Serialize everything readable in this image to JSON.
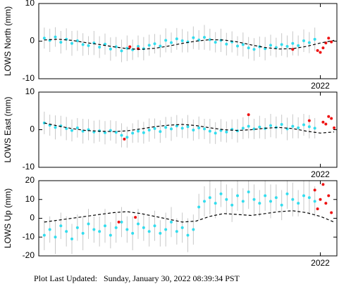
{
  "chart_data": [
    {
      "type": "scatter",
      "ylabel": "LOWS North (mm)",
      "xlim": [
        2016.9,
        2022.3
      ],
      "ylim": [
        -10,
        10
      ],
      "yticks": [
        -10,
        0,
        10
      ],
      "xticks": [
        2022
      ],
      "series": [
        {
          "color": "#33ddee",
          "mode": "points",
          "x": [
            2017.0,
            2017.1,
            2017.2,
            2017.3,
            2017.4,
            2017.5,
            2017.6,
            2017.7,
            2017.8,
            2017.9,
            2018.0,
            2018.1,
            2018.2,
            2018.3,
            2018.4,
            2018.5,
            2018.6,
            2018.7,
            2018.8,
            2018.9,
            2019.0,
            2019.1,
            2019.2,
            2019.3,
            2019.4,
            2019.5,
            2019.6,
            2019.7,
            2019.8,
            2019.9,
            2020.0,
            2020.1,
            2020.2,
            2020.3,
            2020.4,
            2020.5,
            2020.6,
            2020.7,
            2020.8,
            2020.9,
            2021.0,
            2021.1,
            2021.2,
            2021.3,
            2021.4,
            2021.5,
            2021.6,
            2021.7,
            2021.8,
            2021.9
          ],
          "values": [
            0.8,
            0.2,
            1.1,
            -0.3,
            0.5,
            -0.6,
            0.1,
            -0.9,
            -1.2,
            -0.5,
            -1.6,
            -0.8,
            -2.1,
            -1.5,
            -2.6,
            -1.9,
            -2.3,
            -1.4,
            -2.0,
            -1.1,
            -0.7,
            -1.3,
            0.2,
            -0.4,
            0.6,
            0.1,
            -0.2,
            0.9,
            0.3,
            1.0,
            0.4,
            -0.3,
            0.2,
            -0.8,
            -0.2,
            -1.3,
            -0.9,
            -1.8,
            -2.2,
            -1.5,
            -2.0,
            -1.1,
            -1.7,
            -0.9,
            -1.4,
            -0.6,
            -1.2,
            0.1,
            -0.4,
            0.5
          ],
          "errors": [
            2.8,
            3.1,
            2.6,
            3.0,
            2.9,
            3.3,
            2.7,
            3.0,
            2.5,
            3.2,
            2.9,
            2.8,
            3.1,
            2.6,
            3.0,
            3.4,
            2.7,
            2.9,
            3.1,
            2.8,
            2.6,
            3.0,
            3.2,
            2.7,
            2.9,
            3.1,
            2.8,
            3.0,
            2.6,
            3.3,
            2.9,
            2.7,
            3.1,
            3.0,
            2.8,
            2.6,
            3.2,
            2.9,
            3.0,
            2.7,
            3.1,
            2.8,
            2.6,
            3.0,
            2.9,
            3.2,
            2.7,
            3.0,
            2.8,
            3.1
          ]
        },
        {
          "color": "#ee1111",
          "mode": "points",
          "x": [
            2018.55,
            2018.7,
            2021.5,
            2021.95,
            2022.0,
            2022.05,
            2022.1,
            2022.15,
            2022.2
          ],
          "values": [
            -1.5,
            -2.0,
            -2.2,
            -2.5,
            -3.0,
            -1.8,
            -0.5,
            0.8,
            -0.2
          ]
        },
        {
          "color": "#000000",
          "mode": "dashed-line",
          "x": [
            2017.0,
            2017.25,
            2017.5,
            2017.75,
            2018.0,
            2018.25,
            2018.5,
            2018.75,
            2019.0,
            2019.25,
            2019.5,
            2019.75,
            2020.0,
            2020.25,
            2020.5,
            2020.75,
            2021.0,
            2021.25,
            2021.5,
            2021.75,
            2022.0,
            2022.25
          ],
          "values": [
            0.3,
            0.5,
            0.2,
            -0.4,
            -0.9,
            -1.5,
            -2.0,
            -2.2,
            -1.9,
            -1.3,
            -0.6,
            0,
            0.4,
            0.3,
            -0.2,
            -1.0,
            -1.7,
            -2.1,
            -2.0,
            -1.4,
            -0.5,
            0.2
          ]
        }
      ]
    },
    {
      "type": "scatter",
      "ylabel": "LOWS East (mm)",
      "xlim": [
        2016.9,
        2022.3
      ],
      "ylim": [
        -10,
        10
      ],
      "yticks": [
        -10,
        0,
        10
      ],
      "xticks": [
        2022
      ],
      "series": [
        {
          "color": "#33ddee",
          "mode": "points",
          "x": [
            2017.0,
            2017.1,
            2017.2,
            2017.3,
            2017.4,
            2017.5,
            2017.6,
            2017.7,
            2017.8,
            2017.9,
            2018.0,
            2018.1,
            2018.2,
            2018.3,
            2018.4,
            2018.5,
            2018.6,
            2018.7,
            2018.8,
            2018.9,
            2019.0,
            2019.1,
            2019.2,
            2019.3,
            2019.4,
            2019.5,
            2019.6,
            2019.7,
            2019.8,
            2019.9,
            2020.0,
            2020.1,
            2020.2,
            2020.3,
            2020.4,
            2020.5,
            2020.6,
            2020.7,
            2020.8,
            2020.9,
            2021.0,
            2021.1,
            2021.2,
            2021.3,
            2021.4,
            2021.5,
            2021.6,
            2021.7,
            2021.8,
            2021.9
          ],
          "values": [
            1.8,
            1.2,
            0.6,
            1.0,
            0.3,
            -0.2,
            0.5,
            -0.4,
            0.0,
            -0.6,
            -0.3,
            -0.8,
            -0.2,
            -0.7,
            -1.5,
            -2.0,
            -0.9,
            -0.4,
            -0.8,
            -0.1,
            0.3,
            -0.5,
            0.6,
            0.2,
            1.0,
            0.4,
            0.8,
            -0.1,
            0.5,
            0.2,
            -0.4,
            -0.9,
            -0.2,
            -0.6,
            0.1,
            -0.3,
            0.4,
            0.9,
            0.2,
            0.7,
            0.3,
            1.1,
            0.6,
            1.4,
            0.2,
            0.9,
            0.5,
            1.3,
            0.8,
            0.4
          ],
          "errors": [
            3.0,
            2.8,
            3.2,
            2.7,
            3.1,
            2.9,
            2.6,
            3.3,
            2.8,
            3.0,
            2.9,
            3.1,
            2.7,
            3.0,
            3.2,
            2.8,
            2.6,
            3.0,
            2.9,
            3.1,
            2.7,
            3.0,
            2.8,
            3.2,
            2.9,
            2.6,
            3.1,
            2.8,
            3.0,
            2.7,
            3.3,
            2.9,
            3.0,
            2.8,
            2.6,
            3.1,
            2.9,
            3.2,
            2.7,
            3.0,
            2.8,
            3.1,
            2.9,
            2.6,
            3.0,
            3.2,
            2.8,
            2.9,
            3.1,
            2.7
          ]
        },
        {
          "color": "#ee1111",
          "mode": "points",
          "x": [
            2018.45,
            2020.7,
            2021.8,
            2022.05,
            2022.1,
            2022.15,
            2022.2,
            2022.25
          ],
          "values": [
            -2.5,
            4.0,
            2.4,
            2.0,
            1.5,
            3.5,
            3.0,
            0.5
          ]
        },
        {
          "color": "#000000",
          "mode": "dashed-line",
          "x": [
            2017.0,
            2017.25,
            2017.5,
            2017.75,
            2018.0,
            2018.25,
            2018.5,
            2018.75,
            2019.0,
            2019.25,
            2019.5,
            2019.75,
            2020.0,
            2020.25,
            2020.5,
            2020.75,
            2021.0,
            2021.25,
            2021.5,
            2021.75,
            2022.0,
            2022.25
          ],
          "values": [
            1.8,
            1.0,
            0.3,
            -0.2,
            -0.4,
            -0.5,
            -0.3,
            0.2,
            0.8,
            1.2,
            1.4,
            1.1,
            0.5,
            0,
            -0.2,
            0,
            0.4,
            0.6,
            0.3,
            -0.4,
            -0.9,
            -0.6
          ]
        }
      ]
    },
    {
      "type": "scatter",
      "ylabel": "LOWS Up (mm)",
      "xlim": [
        2016.9,
        2022.3
      ],
      "ylim": [
        -20,
        20
      ],
      "yticks": [
        -20,
        -10,
        0,
        10,
        20
      ],
      "xticks": [
        2022
      ],
      "series": [
        {
          "color": "#33ddee",
          "mode": "points",
          "x": [
            2017.0,
            2017.1,
            2017.2,
            2017.3,
            2017.4,
            2017.5,
            2017.6,
            2017.7,
            2017.8,
            2017.9,
            2018.0,
            2018.1,
            2018.2,
            2018.3,
            2018.4,
            2018.5,
            2018.6,
            2018.7,
            2018.8,
            2018.9,
            2019.0,
            2019.1,
            2019.2,
            2019.3,
            2019.4,
            2019.5,
            2019.6,
            2019.7,
            2019.8,
            2019.9,
            2020.0,
            2020.1,
            2020.2,
            2020.3,
            2020.4,
            2020.5,
            2020.6,
            2020.7,
            2020.8,
            2020.9,
            2021.0,
            2021.1,
            2021.2,
            2021.3,
            2021.4,
            2021.5,
            2021.6,
            2021.7,
            2021.8,
            2021.9
          ],
          "values": [
            -9,
            -6,
            -10,
            -4,
            -7,
            -11,
            -5,
            -8,
            -3,
            -6,
            -7,
            -4,
            -9,
            -5,
            -2,
            -6,
            -8,
            -3,
            -5,
            -7,
            -4,
            -8,
            -6,
            -2,
            -7,
            -5,
            -9,
            -6,
            6,
            9,
            11,
            8,
            13,
            10,
            7,
            12,
            9,
            14,
            10,
            8,
            12,
            9,
            11,
            7,
            13,
            10,
            8,
            12,
            11,
            9
          ],
          "errors": [
            8,
            7,
            9,
            7,
            8,
            8,
            7,
            9,
            8,
            7,
            8,
            9,
            7,
            8,
            8,
            7,
            9,
            8,
            7,
            8,
            8,
            7,
            9,
            8,
            7,
            8,
            9,
            8,
            7,
            8,
            9,
            8,
            7,
            8,
            9,
            8,
            7,
            9,
            8,
            7,
            8,
            9,
            7,
            8,
            8,
            9,
            7,
            8,
            9,
            8
          ]
        },
        {
          "color": "#ee1111",
          "mode": "points",
          "x": [
            2018.35,
            2018.65,
            2021.9,
            2021.95,
            2022.0,
            2022.05,
            2022.1,
            2022.15,
            2022.2
          ],
          "values": [
            -2,
            0.5,
            15,
            5,
            10,
            18,
            8,
            12,
            3
          ]
        },
        {
          "color": "#000000",
          "mode": "dashed-line",
          "x": [
            2017.0,
            2017.25,
            2017.5,
            2017.75,
            2018.0,
            2018.25,
            2018.5,
            2018.75,
            2019.0,
            2019.25,
            2019.5,
            2019.75,
            2020.0,
            2020.25,
            2020.5,
            2020.75,
            2021.0,
            2021.25,
            2021.5,
            2021.75,
            2022.0,
            2022.25
          ],
          "values": [
            -2,
            -1,
            0,
            1,
            2,
            3,
            3.5,
            2.5,
            1,
            -0.5,
            -2,
            -1.5,
            1,
            2.5,
            2,
            1.5,
            2.5,
            3.5,
            4,
            3,
            1,
            -2
          ]
        }
      ]
    }
  ],
  "footer": "Plot Last Updated:   Sunday, January 30, 2022 08:39:34 PST"
}
